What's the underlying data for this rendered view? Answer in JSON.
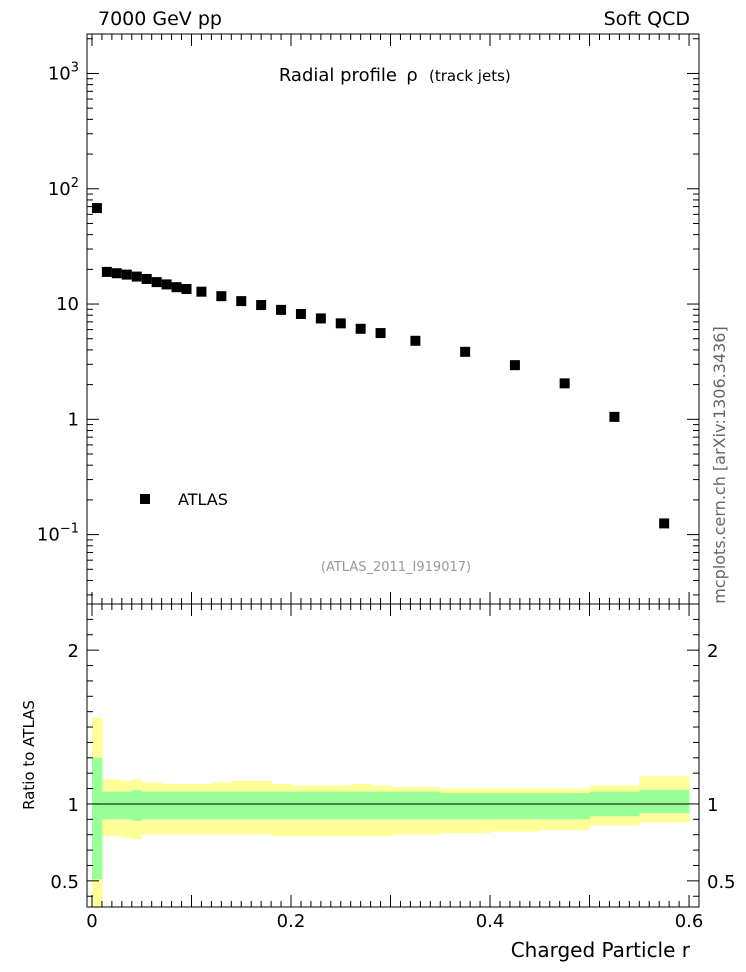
{
  "header": {
    "left": "7000 GeV pp",
    "right": "Soft QCD"
  },
  "side_label": "mcplots.cern.ch [arXiv:1306.3436]",
  "chart_data": [
    {
      "type": "scatter",
      "title_main": "Radial profile",
      "title_symbol": "ρ",
      "title_sub": "(track jets)",
      "xlabel": "Charged Particle r",
      "ylabel": "",
      "yscale": "log",
      "xlim": [
        -0.005,
        0.61
      ],
      "ylim": [
        0.025,
        2200
      ],
      "yticks": [
        {
          "value": 0.1,
          "base": "10",
          "exp": "−1",
          "label": ""
        },
        {
          "value": 1,
          "base": "",
          "exp": "",
          "label": "1"
        },
        {
          "value": 10,
          "base": "",
          "exp": "",
          "label": "10"
        },
        {
          "value": 100,
          "base": "10",
          "exp": "2",
          "label": ""
        },
        {
          "value": 1000,
          "base": "10",
          "exp": "3",
          "label": ""
        }
      ],
      "legend": {
        "label": "ATLAS",
        "position": "lower-left"
      },
      "annotation": "(ATLAS_2011_I919017)",
      "series": [
        {
          "name": "ATLAS",
          "x": [
            0.005,
            0.015,
            0.025,
            0.035,
            0.045,
            0.055,
            0.065,
            0.075,
            0.085,
            0.095,
            0.11,
            0.13,
            0.15,
            0.17,
            0.19,
            0.21,
            0.23,
            0.25,
            0.27,
            0.29,
            0.325,
            0.375,
            0.425,
            0.475,
            0.525,
            0.575
          ],
          "y": [
            68,
            19,
            18.5,
            18,
            17.3,
            16.5,
            15.5,
            14.8,
            14,
            13.5,
            12.8,
            11.7,
            10.6,
            9.8,
            8.9,
            8.2,
            7.5,
            6.8,
            6.1,
            5.6,
            4.8,
            3.85,
            2.95,
            2.05,
            1.05,
            0.125
          ]
        }
      ]
    },
    {
      "type": "area",
      "ylabel": "Ratio to ATLAS",
      "xlabel": "Charged Particle r",
      "xlim": [
        -0.005,
        0.61
      ],
      "ylim": [
        0.33,
        2.3
      ],
      "xticks": [
        0,
        0.2,
        0.4,
        0.6
      ],
      "xtick_labels": [
        "0",
        "0.2",
        "0.4",
        "0.6"
      ],
      "yticks": [
        0.5,
        1,
        2
      ],
      "ytick_labels": [
        "0.5",
        "1",
        "2"
      ],
      "bins": [
        0,
        0.01,
        0.02,
        0.03,
        0.04,
        0.05,
        0.06,
        0.07,
        0.08,
        0.09,
        0.1,
        0.12,
        0.14,
        0.16,
        0.18,
        0.2,
        0.22,
        0.24,
        0.26,
        0.28,
        0.3,
        0.35,
        0.4,
        0.45,
        0.5,
        0.55,
        0.6
      ],
      "stat_band": {
        "color": "#99ff99",
        "low": [
          0.51,
          0.9,
          0.9,
          0.9,
          0.89,
          0.9,
          0.9,
          0.9,
          0.9,
          0.9,
          0.9,
          0.9,
          0.9,
          0.9,
          0.9,
          0.9,
          0.9,
          0.9,
          0.9,
          0.9,
          0.9,
          0.9,
          0.9,
          0.9,
          0.92,
          0.94
        ],
        "high": [
          1.3,
          1.08,
          1.08,
          1.08,
          1.09,
          1.08,
          1.08,
          1.08,
          1.08,
          1.08,
          1.08,
          1.08,
          1.08,
          1.08,
          1.08,
          1.08,
          1.08,
          1.08,
          1.08,
          1.08,
          1.08,
          1.07,
          1.07,
          1.07,
          1.08,
          1.09
        ]
      },
      "total_band": {
        "color": "#ffff99",
        "low": [
          0.3,
          0.79,
          0.79,
          0.78,
          0.77,
          0.8,
          0.8,
          0.8,
          0.8,
          0.8,
          0.8,
          0.8,
          0.8,
          0.8,
          0.79,
          0.79,
          0.79,
          0.79,
          0.79,
          0.79,
          0.8,
          0.81,
          0.82,
          0.83,
          0.86,
          0.88
        ],
        "high": [
          1.56,
          1.16,
          1.16,
          1.15,
          1.16,
          1.14,
          1.14,
          1.13,
          1.13,
          1.13,
          1.13,
          1.14,
          1.15,
          1.15,
          1.13,
          1.12,
          1.12,
          1.12,
          1.13,
          1.12,
          1.11,
          1.1,
          1.1,
          1.1,
          1.12,
          1.18
        ]
      },
      "reference_line": 1
    }
  ]
}
